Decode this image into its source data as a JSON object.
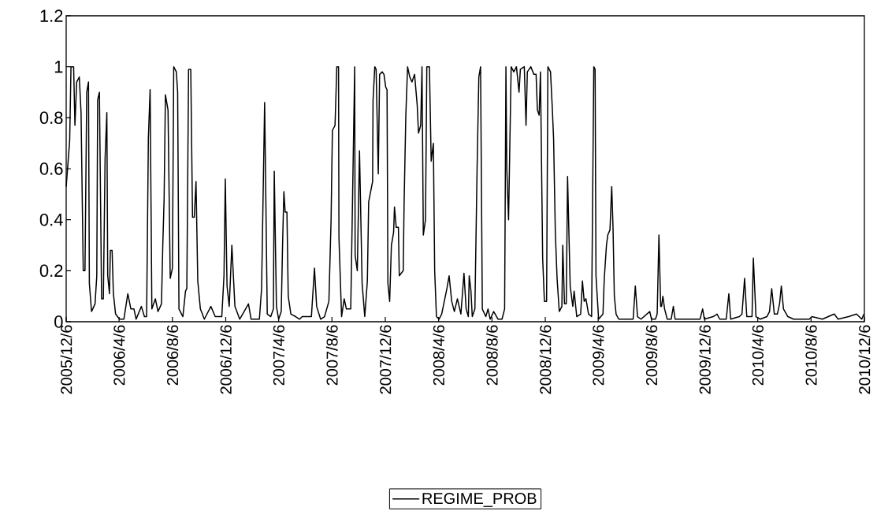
{
  "chart_data": {
    "type": "line",
    "x": [
      "2005-12-06",
      "2005-12-14",
      "2005-12-17",
      "2005-12-23",
      "2005-12-26",
      "2005-12-30",
      "2006-01-05",
      "2006-01-09",
      "2006-01-14",
      "2006-01-18",
      "2006-01-22",
      "2006-01-26",
      "2006-01-28",
      "2006-02-02",
      "2006-02-10",
      "2006-02-14",
      "2006-02-16",
      "2006-02-20",
      "2006-02-25",
      "2006-03-01",
      "2006-03-05",
      "2006-03-09",
      "2006-03-11",
      "2006-03-15",
      "2006-03-17",
      "2006-03-21",
      "2006-03-24",
      "2006-03-29",
      "2006-04-07",
      "2006-04-17",
      "2006-04-26",
      "2006-05-03",
      "2006-05-10",
      "2006-05-15",
      "2006-05-27",
      "2006-06-03",
      "2006-06-08",
      "2006-06-12",
      "2006-06-16",
      "2006-06-20",
      "2006-06-28",
      "2006-07-04",
      "2006-07-12",
      "2006-07-15",
      "2006-07-18",
      "2006-07-21",
      "2006-07-27",
      "2006-08-01",
      "2006-08-06",
      "2006-08-09",
      "2006-08-15",
      "2006-08-18",
      "2006-08-21",
      "2006-08-30",
      "2006-09-05",
      "2006-09-08",
      "2006-09-12",
      "2006-09-17",
      "2006-09-21",
      "2006-09-25",
      "2006-09-29",
      "2006-10-03",
      "2006-10-09",
      "2006-10-18",
      "2006-11-02",
      "2006-11-12",
      "2006-11-27",
      "2006-12-02",
      "2006-12-05",
      "2006-12-09",
      "2006-12-14",
      "2006-12-20",
      "2006-12-27",
      "2007-01-07",
      "2007-01-27",
      "2007-02-02",
      "2007-02-21",
      "2007-02-26",
      "2007-03-05",
      "2007-03-11",
      "2007-03-19",
      "2007-03-25",
      "2007-03-27",
      "2007-04-01",
      "2007-04-06",
      "2007-04-12",
      "2007-04-15",
      "2007-04-18",
      "2007-04-21",
      "2007-04-25",
      "2007-04-28",
      "2007-05-04",
      "2007-05-15",
      "2007-05-24",
      "2007-05-30",
      "2007-06-20",
      "2007-06-27",
      "2007-07-02",
      "2007-07-11",
      "2007-07-20",
      "2007-07-30",
      "2007-08-04",
      "2007-08-07",
      "2007-08-13",
      "2007-08-15",
      "2007-08-17",
      "2007-08-21",
      "2007-08-22",
      "2007-08-28",
      "2007-09-03",
      "2007-09-08",
      "2007-09-18",
      "2007-09-27",
      "2007-09-28",
      "2007-10-03",
      "2007-10-08",
      "2007-10-10",
      "2007-10-14",
      "2007-10-20",
      "2007-10-26",
      "2007-10-29",
      "2007-11-07",
      "2007-11-08",
      "2007-11-12",
      "2007-11-15",
      "2007-11-20",
      "2007-11-23",
      "2007-11-29",
      "2007-12-03",
      "2007-12-07",
      "2007-12-10",
      "2007-12-12",
      "2007-12-16",
      "2007-12-20",
      "2007-12-25",
      "2007-12-27",
      "2007-12-31",
      "2008-01-05",
      "2008-01-07",
      "2008-01-16",
      "2008-01-18",
      "2008-01-22",
      "2008-01-26",
      "2008-01-31",
      "2008-02-05",
      "2008-02-11",
      "2008-02-17",
      "2008-02-20",
      "2008-02-25",
      "2008-02-28",
      "2008-03-02",
      "2008-03-07",
      "2008-03-10",
      "2008-03-16",
      "2008-03-20",
      "2008-03-25",
      "2008-03-28",
      "2008-04-01",
      "2008-04-07",
      "2008-04-13",
      "2008-04-25",
      "2008-04-30",
      "2008-05-06",
      "2008-05-12",
      "2008-05-19",
      "2008-05-27",
      "2008-06-03",
      "2008-06-08",
      "2008-06-13",
      "2008-06-15",
      "2008-06-19",
      "2008-06-22",
      "2008-06-28",
      "2008-07-03",
      "2008-07-07",
      "2008-07-11",
      "2008-07-15",
      "2008-07-23",
      "2008-07-28",
      "2008-08-02",
      "2008-08-10",
      "2008-08-20",
      "2008-08-29",
      "2008-09-04",
      "2008-09-07",
      "2008-09-09",
      "2008-09-13",
      "2008-09-19",
      "2008-09-25",
      "2008-10-01",
      "2008-10-07",
      "2008-10-10",
      "2008-10-19",
      "2008-10-23",
      "2008-10-26",
      "2008-11-03",
      "2008-11-10",
      "2008-11-15",
      "2008-11-18",
      "2008-11-22",
      "2008-11-25",
      "2008-11-30",
      "2008-12-04",
      "2008-12-09",
      "2008-12-12",
      "2008-12-18",
      "2008-12-22",
      "2008-12-25",
      "2008-12-29",
      "2009-01-02",
      "2009-01-07",
      "2009-01-13",
      "2009-01-15",
      "2009-01-19",
      "2009-01-23",
      "2009-01-26",
      "2009-02-01",
      "2009-02-07",
      "2009-02-10",
      "2009-02-16",
      "2009-02-25",
      "2009-03-01",
      "2009-03-05",
      "2009-03-09",
      "2009-03-15",
      "2009-03-22",
      "2009-03-27",
      "2009-03-30",
      "2009-04-01",
      "2009-04-07",
      "2009-04-17",
      "2009-04-20",
      "2009-04-25",
      "2009-04-28",
      "2009-05-03",
      "2009-05-07",
      "2009-05-10",
      "2009-05-13",
      "2009-05-17",
      "2009-05-23",
      "2009-06-13",
      "2009-06-25",
      "2009-06-30",
      "2009-07-05",
      "2009-07-13",
      "2009-08-02",
      "2009-08-06",
      "2009-08-15",
      "2009-08-19",
      "2009-08-23",
      "2009-08-27",
      "2009-08-29",
      "2009-09-01",
      "2009-09-05",
      "2009-09-11",
      "2009-09-20",
      "2009-09-25",
      "2009-09-29",
      "2009-10-23",
      "2009-11-25",
      "2009-12-01",
      "2009-12-05",
      "2009-12-25",
      "2010-01-03",
      "2010-01-09",
      "2010-01-24",
      "2010-01-30",
      "2010-02-03",
      "2010-02-23",
      "2010-03-01",
      "2010-03-07",
      "2010-03-12",
      "2010-03-24",
      "2010-03-27",
      "2010-04-02",
      "2010-04-12",
      "2010-04-27",
      "2010-05-03",
      "2010-05-08",
      "2010-05-14",
      "2010-05-21",
      "2010-05-26",
      "2010-05-30",
      "2010-06-04",
      "2010-06-14",
      "2010-06-27",
      "2010-08-02",
      "2010-08-08",
      "2010-09-01",
      "2010-09-28",
      "2010-10-07",
      "2010-10-31",
      "2010-11-18",
      "2010-11-30",
      "2010-12-05"
    ],
    "series": [
      {
        "name": "REGIME_PROB",
        "color": "#000000",
        "values": [
          0.53,
          0.71,
          1.0,
          1.0,
          0.77,
          0.94,
          0.96,
          0.82,
          0.2,
          0.2,
          0.9,
          0.94,
          0.15,
          0.04,
          0.07,
          0.18,
          0.87,
          0.9,
          0.09,
          0.09,
          0.64,
          0.82,
          0.18,
          0.11,
          0.28,
          0.28,
          0.11,
          0.03,
          0.01,
          0.01,
          0.11,
          0.05,
          0.05,
          0.01,
          0.06,
          0.02,
          0.02,
          0.72,
          0.91,
          0.05,
          0.09,
          0.04,
          0.07,
          0.3,
          0.48,
          0.89,
          0.83,
          0.17,
          0.21,
          1.0,
          0.98,
          0.9,
          0.05,
          0.02,
          0.12,
          0.13,
          0.99,
          0.99,
          0.41,
          0.41,
          0.55,
          0.16,
          0.05,
          0.01,
          0.06,
          0.02,
          0.02,
          0.18,
          0.56,
          0.14,
          0.06,
          0.3,
          0.06,
          0.01,
          0.07,
          0.01,
          0.01,
          0.13,
          0.86,
          0.03,
          0.02,
          0.05,
          0.59,
          0.06,
          0.01,
          0.04,
          0.3,
          0.51,
          0.43,
          0.43,
          0.1,
          0.03,
          0.02,
          0.01,
          0.02,
          0.02,
          0.21,
          0.06,
          0.01,
          0.02,
          0.08,
          0.4,
          0.75,
          0.77,
          0.88,
          1.0,
          1.0,
          0.33,
          0.02,
          0.09,
          0.05,
          0.05,
          1.0,
          0.26,
          0.2,
          0.67,
          0.5,
          0.15,
          0.02,
          0.16,
          0.47,
          0.55,
          0.87,
          1.0,
          0.99,
          0.58,
          0.97,
          0.98,
          0.97,
          0.92,
          0.91,
          0.15,
          0.08,
          0.3,
          0.35,
          0.45,
          0.37,
          0.37,
          0.18,
          0.2,
          0.46,
          0.81,
          1.0,
          0.96,
          0.94,
          0.97,
          0.85,
          0.74,
          0.77,
          1.0,
          0.34,
          0.4,
          1.0,
          1.0,
          0.63,
          0.7,
          0.2,
          0.02,
          0.01,
          0.03,
          0.13,
          0.18,
          0.08,
          0.04,
          0.09,
          0.03,
          0.19,
          0.05,
          0.02,
          0.18,
          0.12,
          0.02,
          0.05,
          0.6,
          0.96,
          1.0,
          0.05,
          0.02,
          0.05,
          0.01,
          0.04,
          0.01,
          0.01,
          0.05,
          1.0,
          0.6,
          0.4,
          1.0,
          0.98,
          1.0,
          0.9,
          0.99,
          1.0,
          0.77,
          0.98,
          1.0,
          0.97,
          0.97,
          0.83,
          0.81,
          0.98,
          0.25,
          0.08,
          0.08,
          1.0,
          0.98,
          0.84,
          0.72,
          0.35,
          0.17,
          0.04,
          0.06,
          0.3,
          0.07,
          0.07,
          0.57,
          0.14,
          0.06,
          0.12,
          0.02,
          0.03,
          0.16,
          0.08,
          0.09,
          0.03,
          0.02,
          1.0,
          0.99,
          0.18,
          0.01,
          0.03,
          0.17,
          0.3,
          0.34,
          0.36,
          0.53,
          0.37,
          0.1,
          0.03,
          0.01,
          0.01,
          0.01,
          0.14,
          0.02,
          0.01,
          0.04,
          0.01,
          0.01,
          0.03,
          0.34,
          0.06,
          0.06,
          0.1,
          0.05,
          0.01,
          0.01,
          0.06,
          0.01,
          0.01,
          0.01,
          0.05,
          0.01,
          0.02,
          0.03,
          0.01,
          0.01,
          0.11,
          0.01,
          0.02,
          0.03,
          0.17,
          0.02,
          0.02,
          0.25,
          0.02,
          0.01,
          0.02,
          0.04,
          0.13,
          0.03,
          0.03,
          0.07,
          0.14,
          0.05,
          0.02,
          0.01,
          0.01,
          0.02,
          0.01,
          0.03,
          0.01,
          0.02,
          0.03,
          0.01,
          0.03
        ]
      }
    ],
    "xlim": [
      "2005-12-06",
      "2010-12-06"
    ],
    "xticks": [
      {
        "value": "2005-12-06",
        "label": "2005/12/6"
      },
      {
        "value": "2006-04-06",
        "label": "2006/4/6"
      },
      {
        "value": "2006-08-06",
        "label": "2006/8/6"
      },
      {
        "value": "2006-12-06",
        "label": "2006/12/6"
      },
      {
        "value": "2007-04-06",
        "label": "2007/4/6"
      },
      {
        "value": "2007-08-06",
        "label": "2007/8/6"
      },
      {
        "value": "2007-12-06",
        "label": "2007/12/6"
      },
      {
        "value": "2008-04-06",
        "label": "2008/4/6"
      },
      {
        "value": "2008-08-06",
        "label": "2008/8/6"
      },
      {
        "value": "2008-12-06",
        "label": "2008/12/6"
      },
      {
        "value": "2009-04-06",
        "label": "2009/4/6"
      },
      {
        "value": "2009-08-06",
        "label": "2009/8/6"
      },
      {
        "value": "2009-12-06",
        "label": "2009/12/6"
      },
      {
        "value": "2010-04-06",
        "label": "2010/4/6"
      },
      {
        "value": "2010-08-06",
        "label": "2010/8/6"
      },
      {
        "value": "2010-12-06",
        "label": "2010/12/6"
      }
    ],
    "ylim": [
      0,
      1.2
    ],
    "yticks": [
      0,
      0.2,
      0.4,
      0.6,
      0.8,
      1,
      1.2
    ],
    "legend": "bottom",
    "line_style": "solid",
    "grid": false
  }
}
